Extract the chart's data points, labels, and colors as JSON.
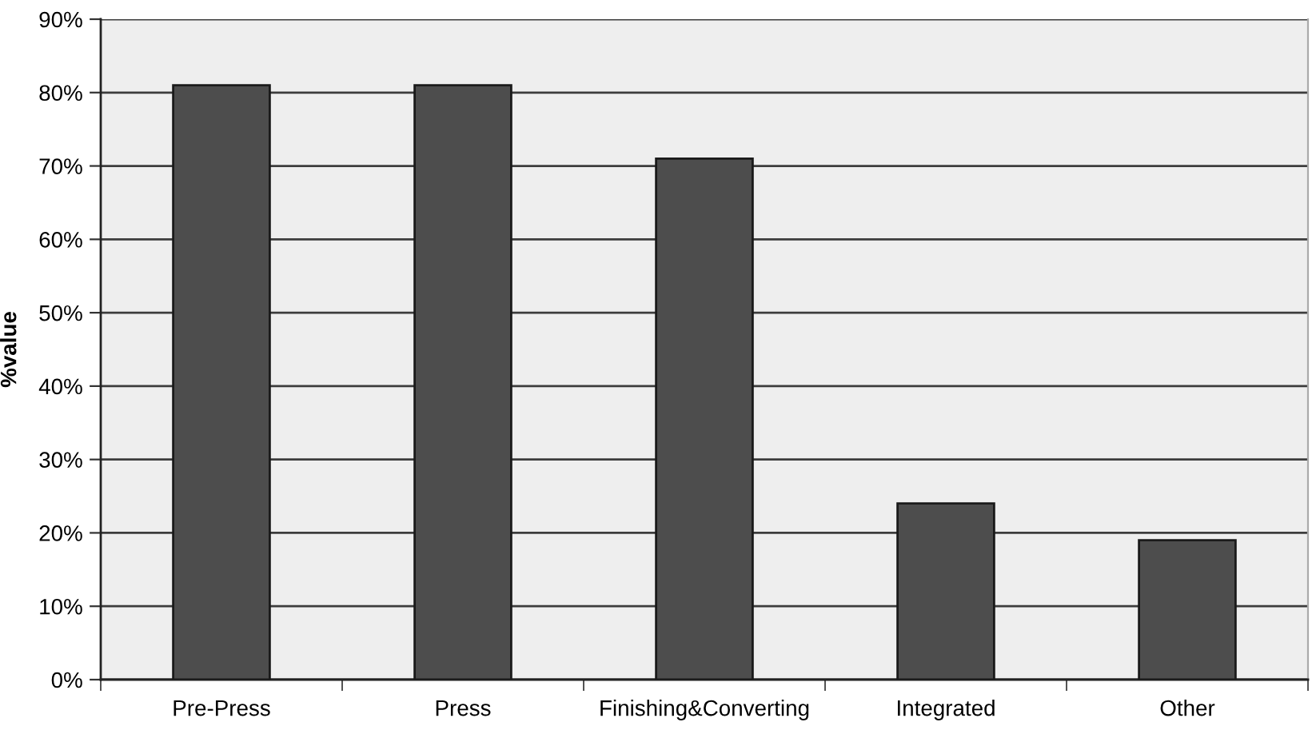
{
  "chart_data": {
    "type": "bar",
    "ylabel": "%value",
    "categories": [
      "Pre-Press",
      "Press",
      "Finishing&Converting",
      "Integrated",
      "Other"
    ],
    "values": [
      81,
      81,
      71,
      24,
      19
    ],
    "color": "#4d4d4d",
    "ylim": [
      0,
      90
    ],
    "yticks": [
      {
        "value": 0,
        "label": "0%"
      },
      {
        "value": 10,
        "label": "10%"
      },
      {
        "value": 20,
        "label": "20%"
      },
      {
        "value": 30,
        "label": "30%"
      },
      {
        "value": 40,
        "label": "40%"
      },
      {
        "value": 50,
        "label": "50%"
      },
      {
        "value": 60,
        "label": "60%"
      },
      {
        "value": 70,
        "label": "70%"
      },
      {
        "value": 80,
        "label": "80%"
      },
      {
        "value": 90,
        "label": "90%"
      }
    ],
    "grid": "y",
    "legend": false
  }
}
